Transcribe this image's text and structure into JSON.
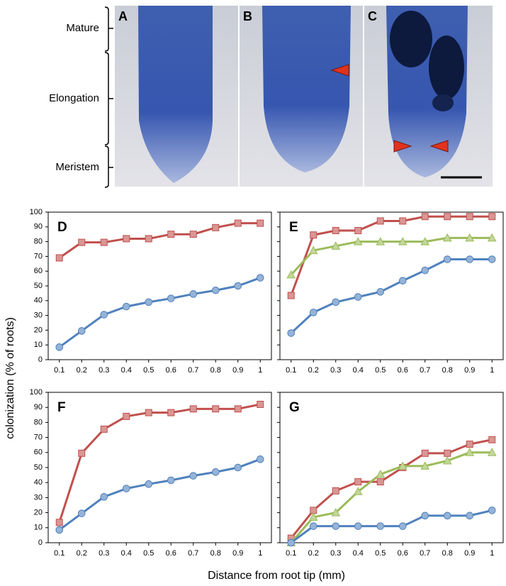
{
  "figure": {
    "panels": [
      "A",
      "B",
      "C"
    ],
    "zones": [
      "Mature",
      "Elongation",
      "Meristem"
    ],
    "ylabel": "colonization (% of roots)",
    "xlabel": "Distance from root tip (mm)"
  },
  "chart_data": [
    {
      "type": "line",
      "title": "D",
      "categories": [
        "0.1",
        "0.2",
        "0.3",
        "0.4",
        "0.5",
        "0.6",
        "0.7",
        "0.8",
        "0.9",
        "1"
      ],
      "ylim": [
        0,
        100
      ],
      "yticks": [
        0,
        10,
        20,
        30,
        40,
        50,
        60,
        70,
        80,
        90,
        100
      ],
      "ytick_labels": true,
      "series": [
        {
          "color": "#c0504d",
          "marker": "square",
          "values": [
            69,
            79.5,
            79.5,
            82,
            82,
            85,
            85,
            89.5,
            92.5,
            92.5
          ]
        },
        {
          "color": "#4f81bd",
          "marker": "circle",
          "values": [
            8.5,
            19.5,
            30.5,
            36,
            39,
            41.5,
            44.5,
            47,
            50,
            55.5
          ]
        }
      ]
    },
    {
      "type": "line",
      "title": "E",
      "categories": [
        "0.1",
        "0.2",
        "0.3",
        "0.4",
        "0.5",
        "0.6",
        "0.7",
        "0.8",
        "0.9",
        "1"
      ],
      "ylim": [
        0,
        100
      ],
      "yticks": [
        0,
        10,
        20,
        30,
        40,
        50,
        60,
        70,
        80,
        90,
        100
      ],
      "ytick_labels": false,
      "series": [
        {
          "color": "#c0504d",
          "marker": "square",
          "values": [
            43.5,
            84.5,
            87.5,
            87.5,
            94,
            94,
            97,
            97,
            97,
            97
          ]
        },
        {
          "color": "#9bbb59",
          "marker": "triangle",
          "values": [
            57.5,
            74,
            77,
            80,
            80,
            80,
            80,
            82.5,
            82.5,
            82.5
          ]
        },
        {
          "color": "#4f81bd",
          "marker": "circle",
          "values": [
            18,
            32,
            39,
            42.5,
            46,
            53.5,
            60.5,
            68,
            68,
            68
          ]
        }
      ]
    },
    {
      "type": "line",
      "title": "F",
      "categories": [
        "0.1",
        "0.2",
        "0.3",
        "0.4",
        "0.5",
        "0.6",
        "0.7",
        "0.8",
        "0.9",
        "1"
      ],
      "ylim": [
        0,
        100
      ],
      "yticks": [
        0,
        10,
        20,
        30,
        40,
        50,
        60,
        70,
        80,
        90,
        100
      ],
      "ytick_labels": true,
      "series": [
        {
          "color": "#c0504d",
          "marker": "square",
          "values": [
            13.5,
            59.5,
            75.5,
            84,
            86.5,
            86.5,
            89,
            89,
            89,
            92
          ]
        },
        {
          "color": "#4f81bd",
          "marker": "circle",
          "values": [
            8.5,
            19.5,
            30.5,
            36,
            39,
            41.5,
            44.5,
            47,
            50,
            55.5
          ]
        }
      ]
    },
    {
      "type": "line",
      "title": "G",
      "categories": [
        "0.1",
        "0.2",
        "0.3",
        "0.4",
        "0.5",
        "0.6",
        "0.7",
        "0.8",
        "0.9",
        "1"
      ],
      "ylim": [
        0,
        100
      ],
      "yticks": [
        0,
        10,
        20,
        30,
        40,
        50,
        60,
        70,
        80,
        90,
        100
      ],
      "ytick_labels": false,
      "series": [
        {
          "color": "#c0504d",
          "marker": "square",
          "values": [
            3,
            21.5,
            34.5,
            40.5,
            40.5,
            50,
            59.5,
            59.5,
            65.5,
            68.5
          ]
        },
        {
          "color": "#9bbb59",
          "marker": "triangle",
          "values": [
            0,
            17,
            20,
            34,
            45.5,
            51,
            51,
            54.5,
            60,
            60
          ]
        },
        {
          "color": "#4f81bd",
          "marker": "circle",
          "values": [
            0,
            11,
            11,
            11,
            11,
            11,
            18,
            18,
            18,
            21.5
          ]
        }
      ]
    }
  ]
}
